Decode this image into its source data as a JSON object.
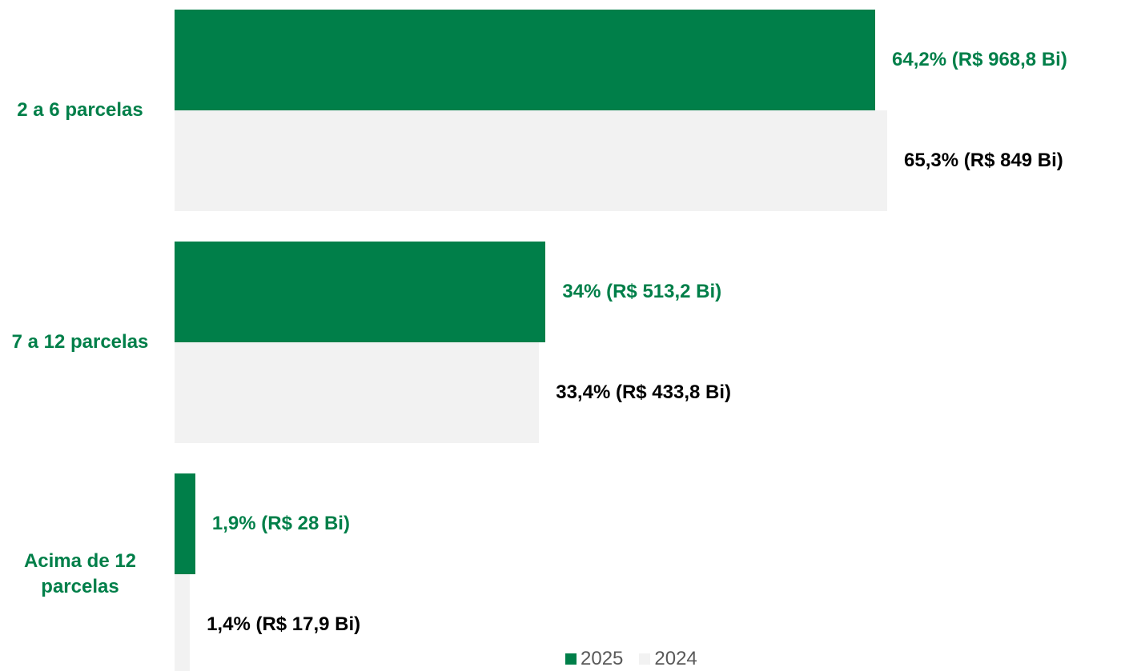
{
  "chart_data": {
    "type": "bar",
    "orientation": "horizontal",
    "categories": [
      "2 a 6 parcelas",
      "7 a 12 parcelas",
      "Acima de 12 parcelas"
    ],
    "series": [
      {
        "name": "2025",
        "color": "#007f49",
        "values": [
          64.2,
          34,
          1.9
        ],
        "value_labels": [
          "64,2% (R$ 968,8 Bi)",
          "34% (R$ 513,2 Bi)",
          "1,9% (R$ 28 Bi)"
        ],
        "label_color": "#007f49"
      },
      {
        "name": "2024",
        "color": "#f2f2f2",
        "values": [
          65.3,
          33.4,
          1.4
        ],
        "value_labels": [
          "65,3% (R$ 849 Bi)",
          "33,4% (R$ 433,8 Bi)",
          "1,4% (R$ 17,9 Bi)"
        ],
        "label_color": "#000000"
      }
    ],
    "xlim": [
      0,
      100
    ],
    "legend": "bottom"
  }
}
